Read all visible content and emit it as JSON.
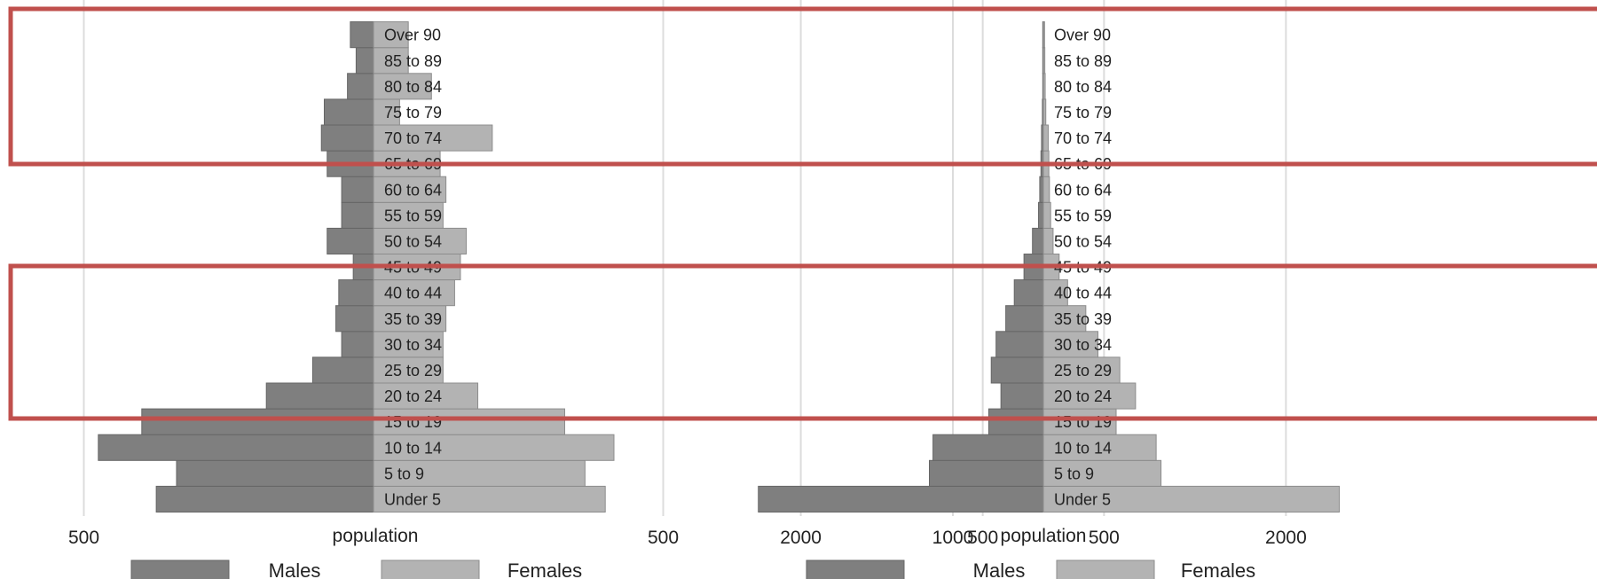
{
  "chart_data": [
    {
      "type": "bar",
      "orientation": "horizontal",
      "subtype": "population-pyramid",
      "title": "",
      "xlabel": "population",
      "ylabel": "",
      "xlim": [
        -1000,
        1000
      ],
      "xticks": [
        -1000,
        -500,
        500,
        1000
      ],
      "xtick_labels": [
        "1000",
        "500",
        "500",
        "1000"
      ],
      "grid": true,
      "legend_position": "bottom",
      "categories": [
        "Under 5",
        "5 to 9",
        "10 to 14",
        "15 to 19",
        "20 to 24",
        "25 to 29",
        "30 to 34",
        "35 to 39",
        "40 to 44",
        "45 to 49",
        "50 to 54",
        "55 to 59",
        "60 to 64",
        "65 to 69",
        "70 to 74",
        "75 to 79",
        "80 to 84",
        "85 to 89",
        "Over 90"
      ],
      "series": [
        {
          "name": "Males",
          "color": "#7f7f7f",
          "values": [
            375,
            340,
            475,
            400,
            185,
            105,
            55,
            65,
            60,
            35,
            80,
            55,
            55,
            80,
            90,
            85,
            45,
            30,
            40
          ]
        },
        {
          "name": "Females",
          "color": "#b3b3b3",
          "values": [
            400,
            365,
            415,
            330,
            180,
            120,
            120,
            125,
            140,
            150,
            160,
            120,
            125,
            115,
            205,
            45,
            100,
            60,
            60
          ]
        }
      ]
    },
    {
      "type": "bar",
      "orientation": "horizontal",
      "subtype": "population-pyramid",
      "title": "",
      "xlabel": "population",
      "ylabel": "",
      "xlim": [
        -2800,
        2800
      ],
      "xticks": [
        -2000,
        -500,
        500,
        2000
      ],
      "xtick_labels": [
        "2000",
        "500",
        "500",
        "2000"
      ],
      "grid": true,
      "legend_position": "bottom",
      "categories": [
        "Under 5",
        "5 to 9",
        "10 to 14",
        "15 to 19",
        "20 to 24",
        "25 to 29",
        "30 to 34",
        "35 to 39",
        "40 to 44",
        "45 to 49",
        "50 to 54",
        "55 to 59",
        "60 to 64",
        "65 to 69",
        "70 to 74",
        "75 to 79",
        "80 to 84",
        "85 to 89",
        "Over 90"
      ],
      "series": [
        {
          "name": "Males",
          "color": "#7f7f7f",
          "values": [
            2350,
            940,
            910,
            450,
            350,
            430,
            390,
            310,
            240,
            160,
            90,
            40,
            30,
            20,
            15,
            8,
            5,
            5,
            5
          ]
        },
        {
          "name": "Females",
          "color": "#b3b3b3",
          "values": [
            2440,
            970,
            930,
            600,
            760,
            630,
            450,
            350,
            200,
            130,
            80,
            60,
            50,
            45,
            40,
            20,
            15,
            12,
            10
          ]
        }
      ]
    }
  ]
}
